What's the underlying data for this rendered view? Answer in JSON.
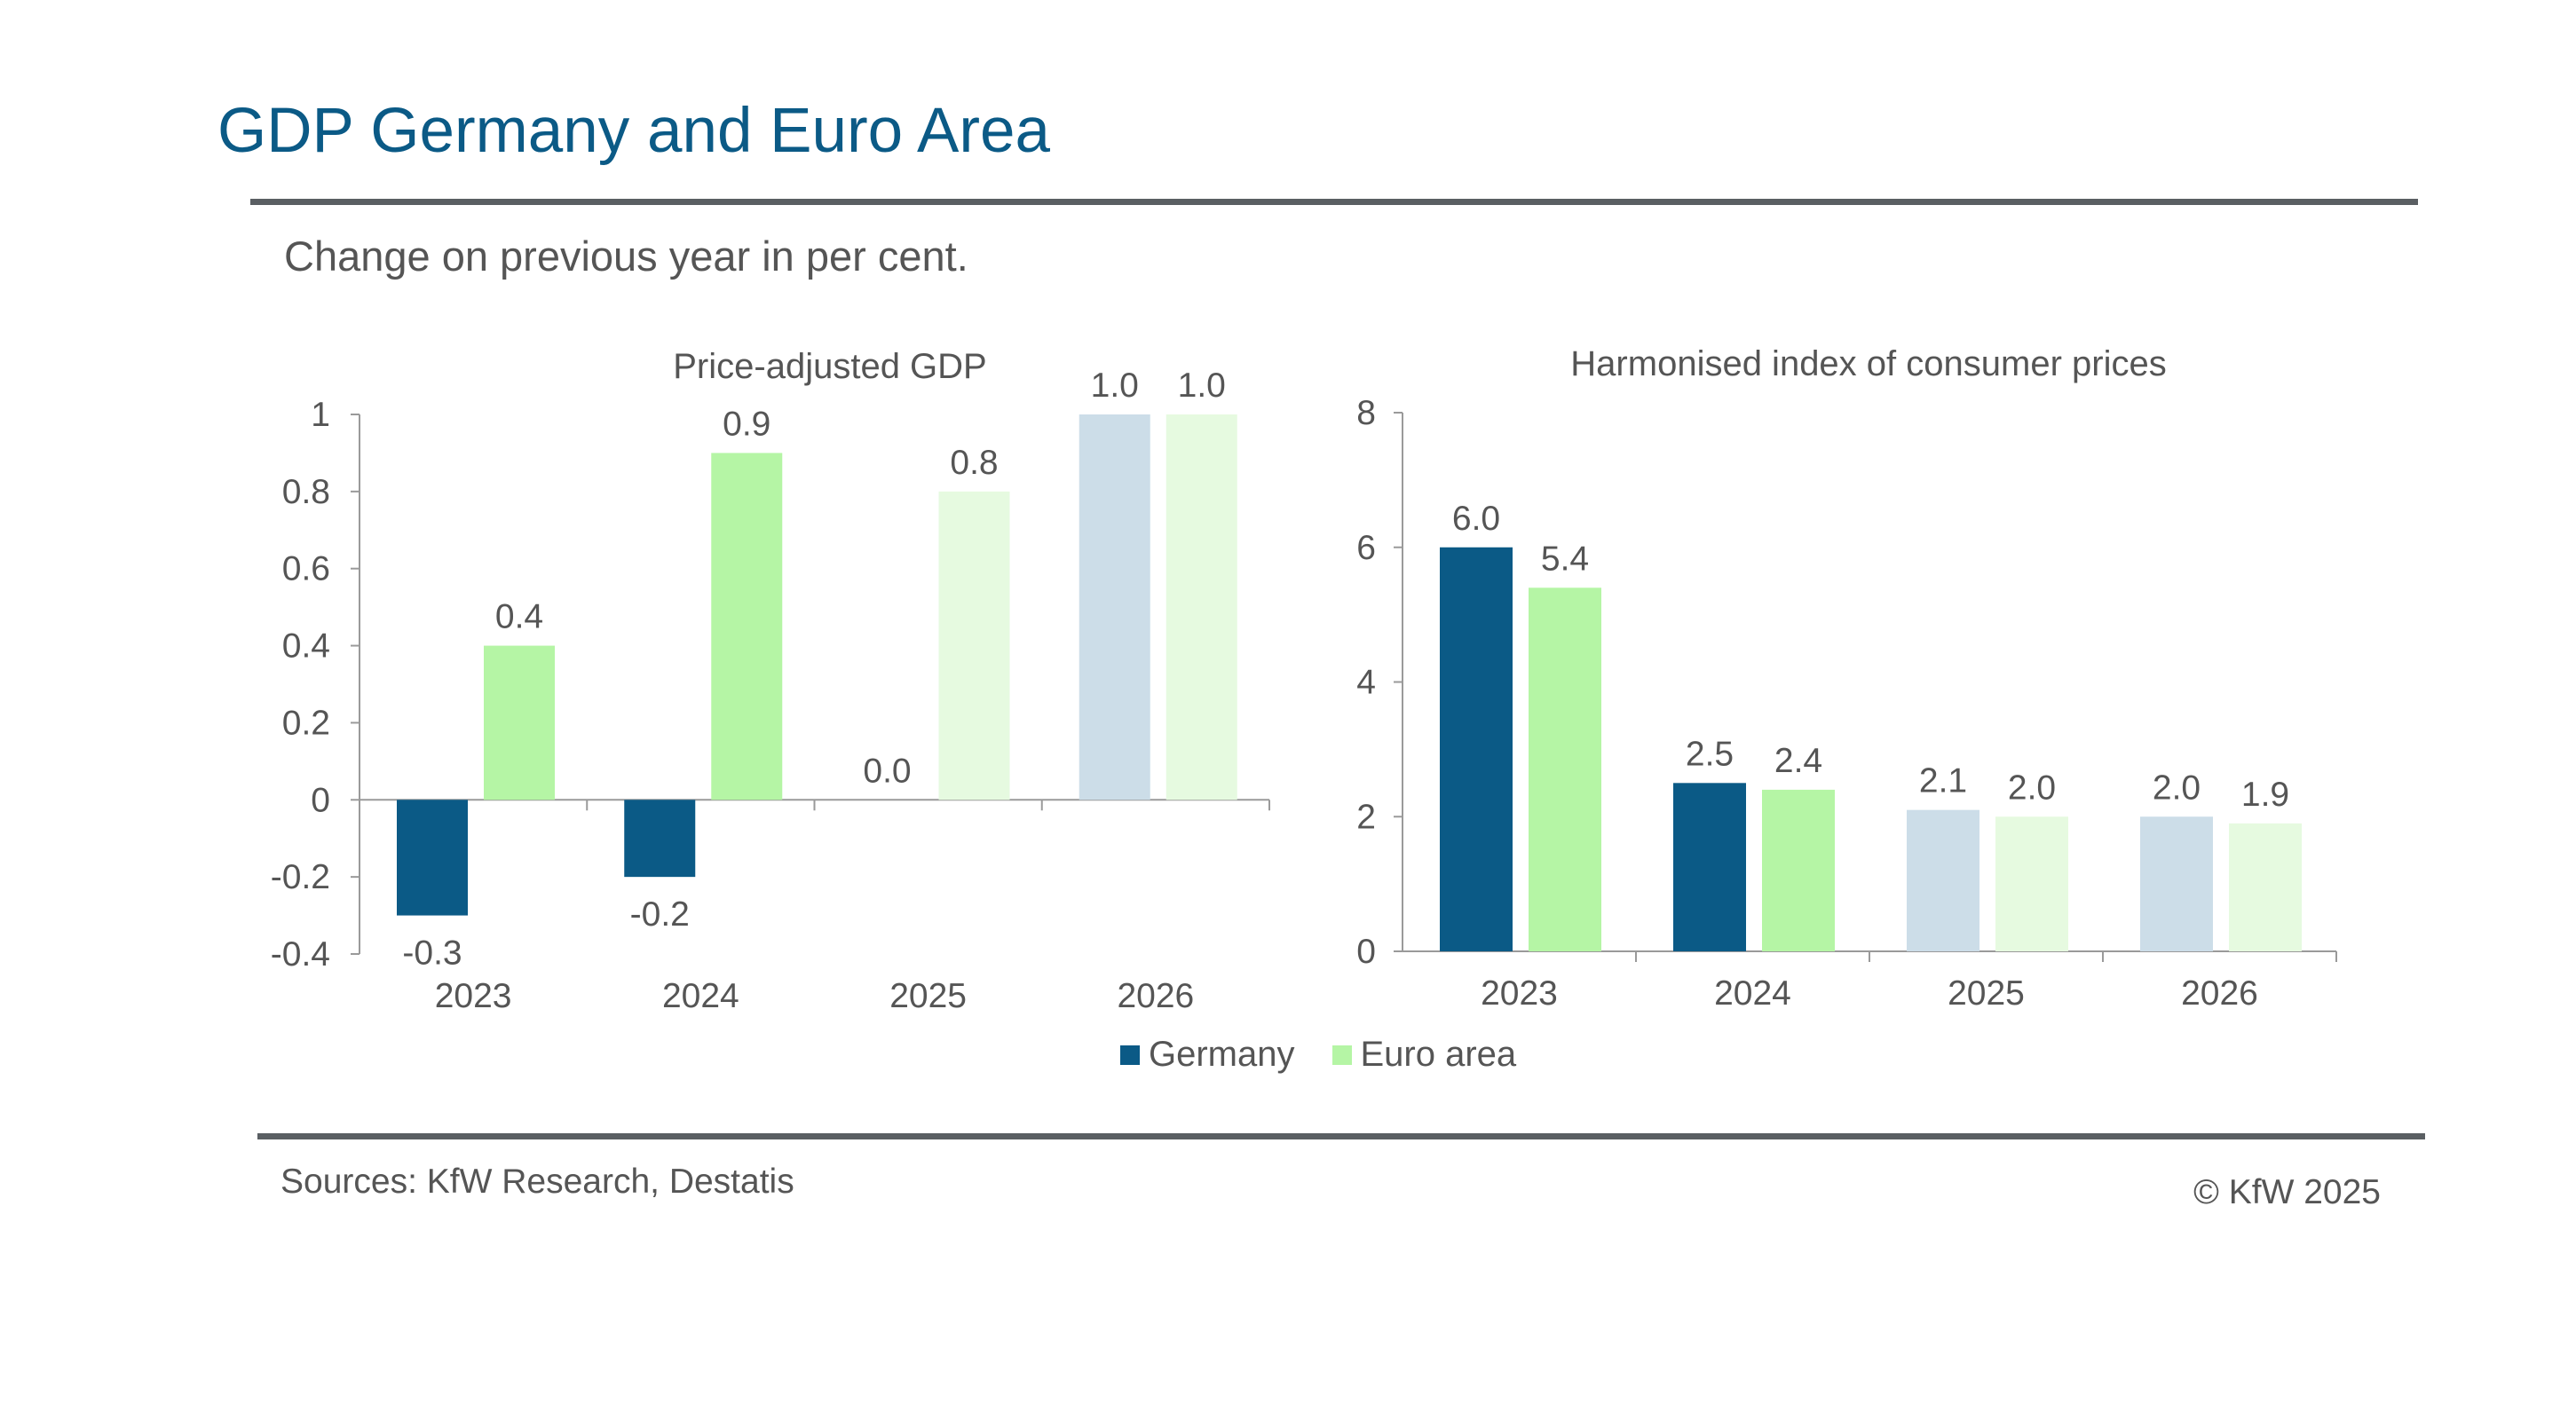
{
  "title": "GDP Germany and Euro Area",
  "subtitle": "Change on previous year in per cent.",
  "footer": {
    "sources": "Sources: KfW Research, Destatis",
    "copyright": "© KfW 2025"
  },
  "legend": [
    {
      "label": "Germany",
      "color": "#0b5a86"
    },
    {
      "label": "Euro area",
      "color": "#b5f5a5"
    }
  ],
  "colors": {
    "germany": "#0b5a86",
    "euro": "#b5f5a5",
    "germany_forecast": "#ccdde8",
    "euro_forecast": "#e6fae0",
    "axis": "#9a9a9a",
    "text": "#555555"
  },
  "chart_data": [
    {
      "type": "bar",
      "title": "Price-adjusted GDP",
      "categories": [
        "2023",
        "2024",
        "2025",
        "2026"
      ],
      "series": [
        {
          "name": "Germany",
          "values": [
            -0.3,
            -0.2,
            0.0,
            1.0
          ],
          "labels": [
            "-0.3",
            "-0.2",
            "0.0",
            "1.0"
          ]
        },
        {
          "name": "Euro area",
          "values": [
            0.4,
            0.9,
            0.8,
            1.0
          ],
          "labels": [
            "0.4",
            "0.9",
            "0.8",
            "1.0"
          ]
        }
      ],
      "forecast_categories": [
        "2025",
        "2026"
      ],
      "ylim": [
        -0.4,
        1
      ],
      "yticks": [
        "-0.4",
        "-0.2",
        "0",
        "0.2",
        "0.4",
        "0.6",
        "0.8",
        "1"
      ],
      "grid": false
    },
    {
      "type": "bar",
      "title": "Harmonised index of consumer prices",
      "categories": [
        "2023",
        "2024",
        "2025",
        "2026"
      ],
      "series": [
        {
          "name": "Germany",
          "values": [
            6.0,
            2.5,
            2.1,
            2.0
          ],
          "labels": [
            "6.0",
            "2.5",
            "2.1",
            "2.0"
          ]
        },
        {
          "name": "Euro area",
          "values": [
            5.4,
            2.4,
            2.0,
            1.9
          ],
          "labels": [
            "5.4",
            "2.4",
            "2.0",
            "1.9"
          ]
        }
      ],
      "forecast_categories": [
        "2025",
        "2026"
      ],
      "ylim": [
        0,
        8
      ],
      "yticks": [
        "0",
        "2",
        "4",
        "6",
        "8"
      ],
      "grid": false
    }
  ]
}
